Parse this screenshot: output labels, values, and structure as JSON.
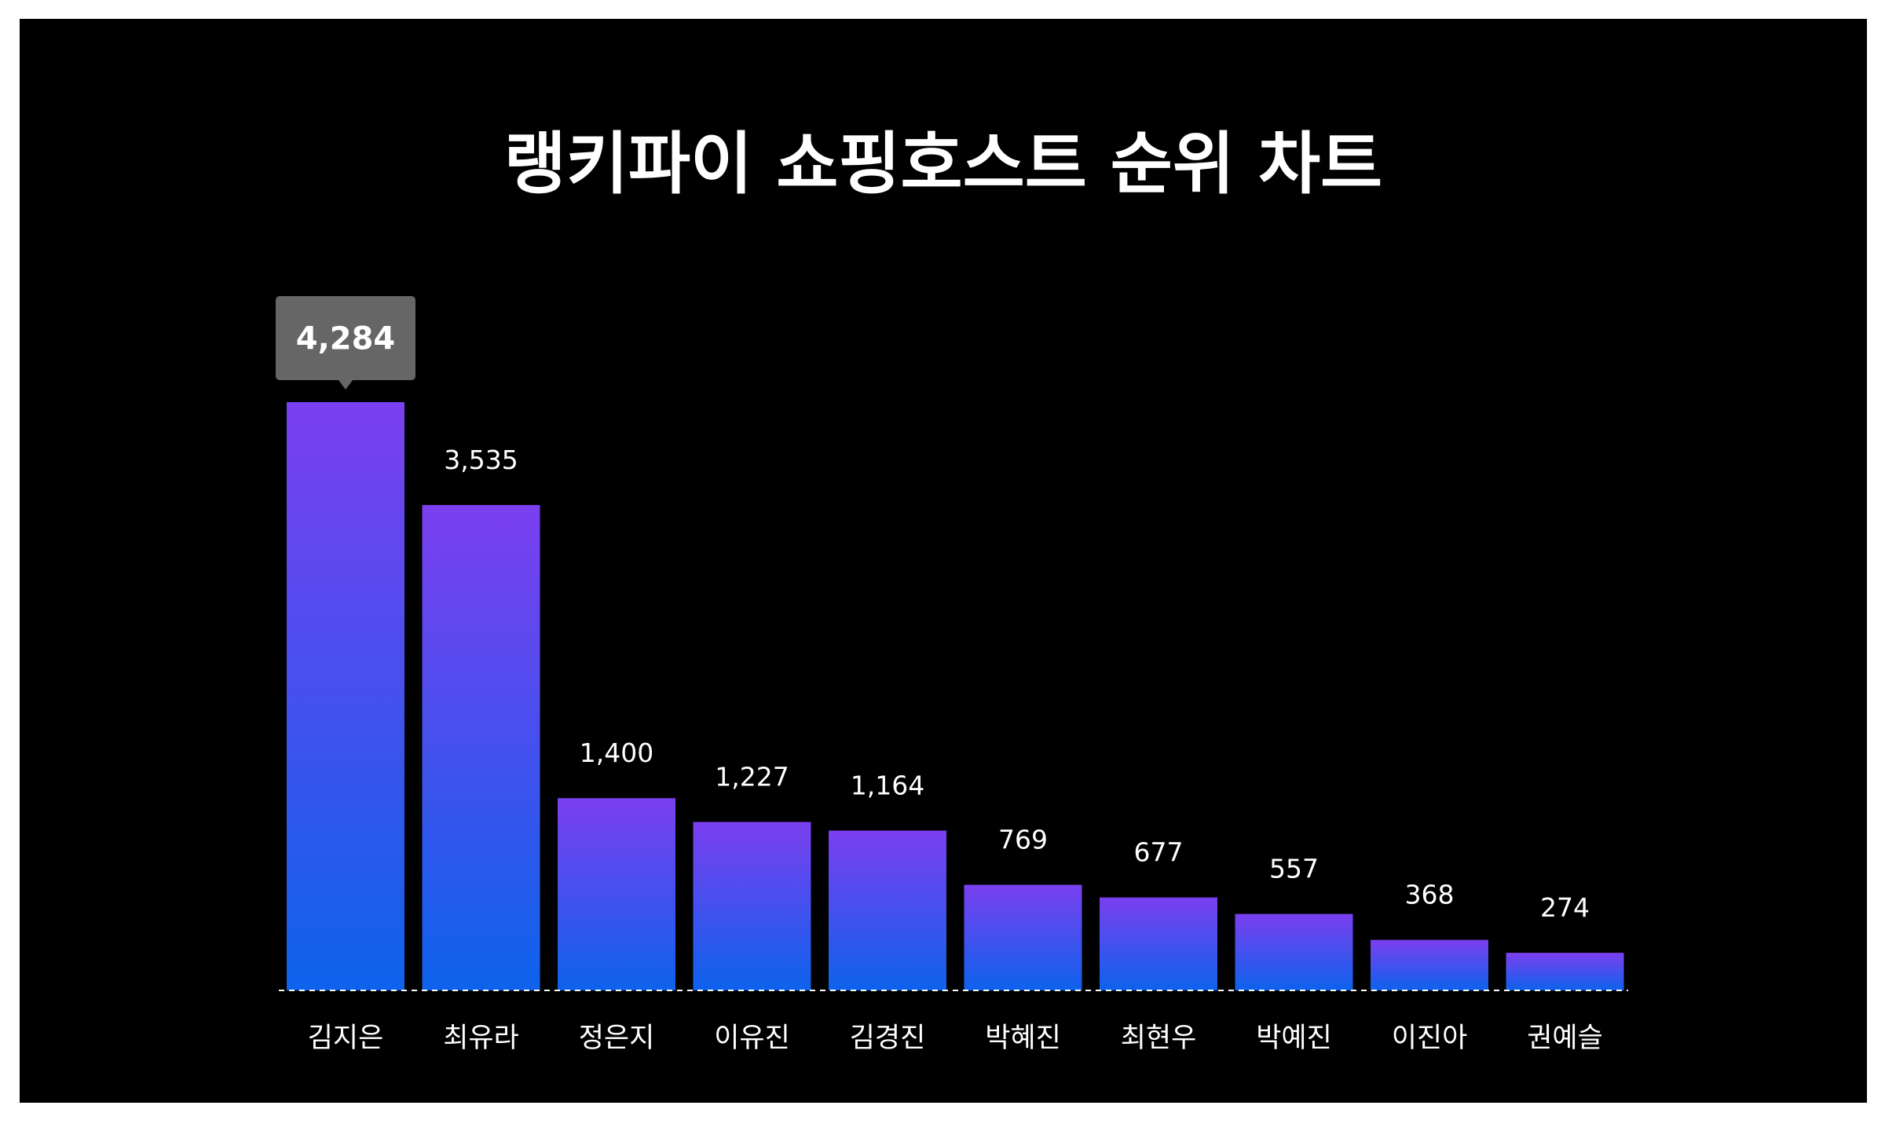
{
  "chart_data": {
    "type": "bar",
    "title": "랭키파이 쇼핑호스트 순위 차트",
    "categories": [
      "김지은",
      "최유라",
      "정은지",
      "이유진",
      "김경진",
      "박혜진",
      "최현우",
      "박예진",
      "이진아",
      "권예슬"
    ],
    "values": [
      4284,
      3535,
      1400,
      1227,
      1164,
      769,
      677,
      557,
      368,
      274
    ],
    "value_labels": [
      "4,284",
      "3,535",
      "1,400",
      "1,227",
      "1,164",
      "769",
      "677",
      "557",
      "368",
      "274"
    ],
    "highlighted_index": 0,
    "xlabel": "",
    "ylabel": "",
    "ylim": [
      0,
      4284
    ],
    "grid": false,
    "legend": "none",
    "colors": {
      "background": "#000000",
      "bar_top": "#7b3fef",
      "bar_bottom": "#0d62ec",
      "text": "#ffffff",
      "tooltip": "#666666",
      "baseline": "#ffffff"
    }
  }
}
